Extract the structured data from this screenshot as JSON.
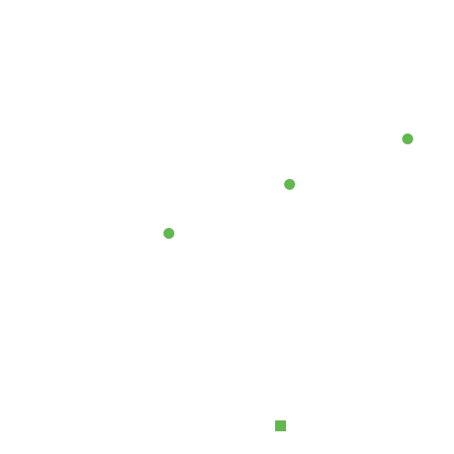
{
  "markers": {
    "color": "#62b84f",
    "dot_shape": "circle",
    "square_shape": "square",
    "dot_count": 3,
    "square_count": 1
  }
}
